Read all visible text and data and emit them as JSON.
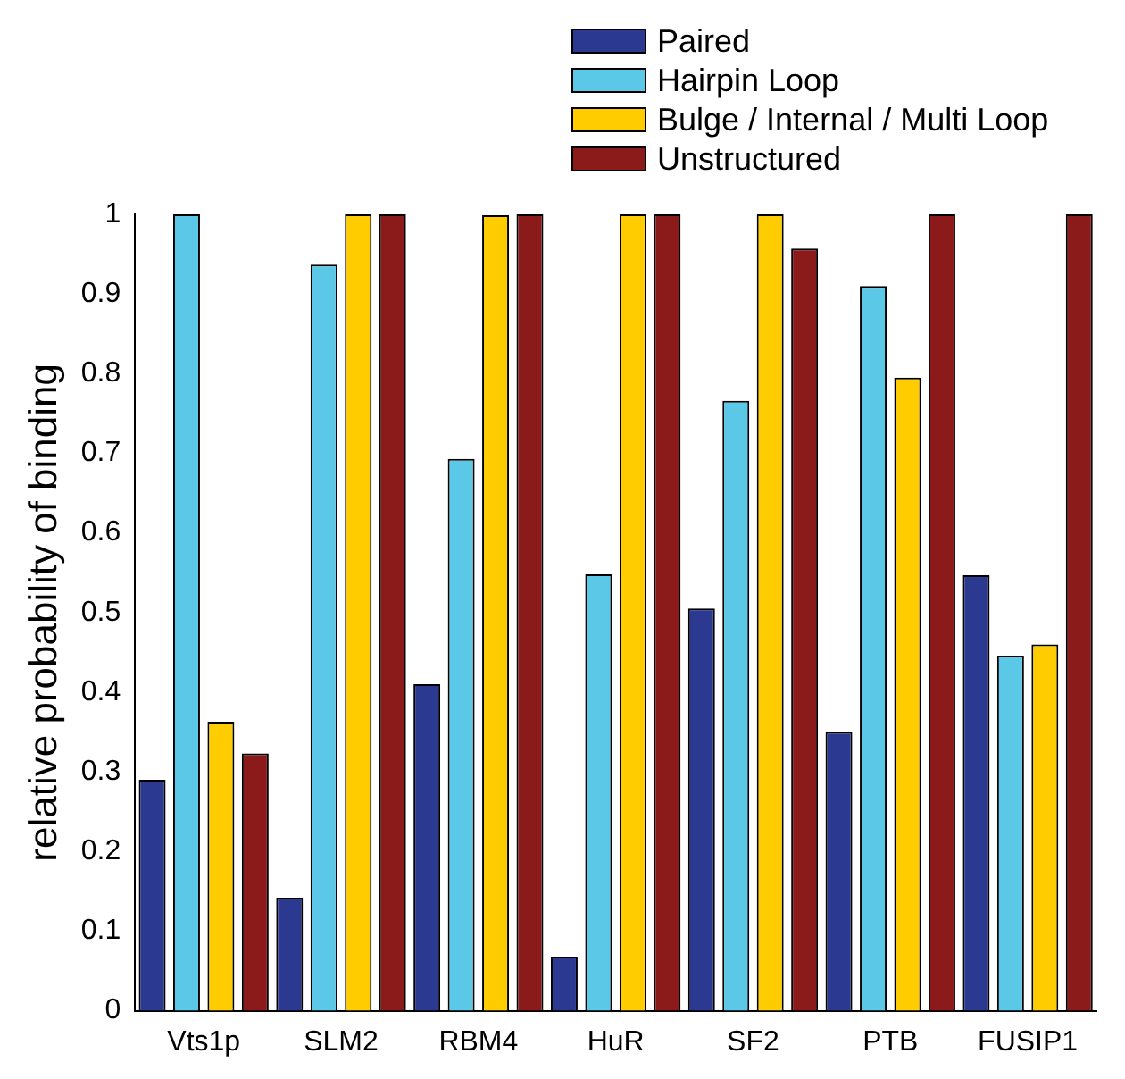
{
  "chart_data": {
    "type": "bar",
    "ylabel": "relative probability of binding",
    "categories": [
      "Vts1p",
      "SLM2",
      "RBM4",
      "HuR",
      "SF2",
      "PTB",
      "FUSIP1"
    ],
    "series": [
      {
        "name": "Paired",
        "color": "#2b3990",
        "values": [
          0.29,
          0.142,
          0.41,
          0.068,
          0.505,
          0.35,
          0.547
        ]
      },
      {
        "name": "Hairpin Loop",
        "color": "#5bc8e8",
        "values": [
          1.0,
          0.937,
          0.693,
          0.548,
          0.766,
          0.91,
          0.446
        ]
      },
      {
        "name": "Bulge / Internal / Multi Loop",
        "color": "#ffcc00",
        "values": [
          0.363,
          1.0,
          0.999,
          1.0,
          1.0,
          0.795,
          0.46
        ]
      },
      {
        "name": "Unstructured",
        "color": "#8b1a1a",
        "values": [
          0.323,
          1.0,
          1.0,
          1.0,
          0.957,
          1.0,
          1.0
        ]
      }
    ],
    "ylim": [
      0,
      1
    ],
    "yticks": [
      0,
      0.1,
      0.2,
      0.3,
      0.4,
      0.5,
      0.6,
      0.7,
      0.8,
      0.9,
      1
    ],
    "grid": false,
    "legend": "top right"
  }
}
